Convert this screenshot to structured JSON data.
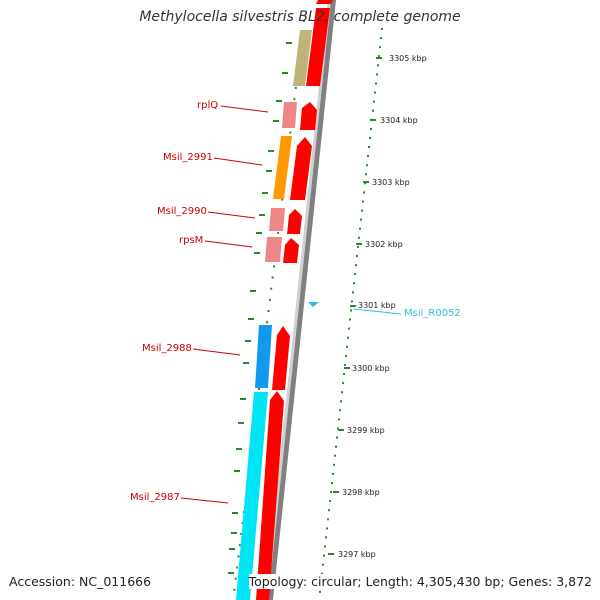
{
  "title": "Methylocella silvestris BL2, complete genome",
  "accession_text": "Accession: NC_011666",
  "topology_text": "Topology: circular; Length: 4,305,430 bp; Genes: 3,872",
  "ticks": [
    {
      "label": "3305 kbp"
    },
    {
      "label": "3304 kbp"
    },
    {
      "label": "3303 kbp"
    },
    {
      "label": "3302 kbp"
    },
    {
      "label": "3301 kbp"
    },
    {
      "label": "3300 kbp"
    },
    {
      "label": "3299 kbp"
    },
    {
      "label": "3298 kbp"
    },
    {
      "label": "3297 kbp"
    }
  ],
  "genes": [
    {
      "name": "rplQ",
      "color": "#cc0000"
    },
    {
      "name": "Msil_2991",
      "color": "#cc0000"
    },
    {
      "name": "Msil_2990",
      "color": "#cc0000"
    },
    {
      "name": "rpsM",
      "color": "#cc0000"
    },
    {
      "name": "Msil_2988",
      "color": "#cc0000"
    },
    {
      "name": "Msil_2987",
      "color": "#cc0000"
    },
    {
      "name": "Msil_R0052",
      "color": "#33bbdd"
    }
  ],
  "colors": {
    "cds": "#ff0000",
    "cog_tan": "#bdb47a",
    "cog_pink": "#ee8888",
    "cog_orange": "#ff9900",
    "cog_blue": "#1199ee",
    "cog_cyan": "#00e5f5",
    "backbone": "#808080",
    "gc_skew": "#2a8a2a",
    "trna": "#33bbdd"
  }
}
